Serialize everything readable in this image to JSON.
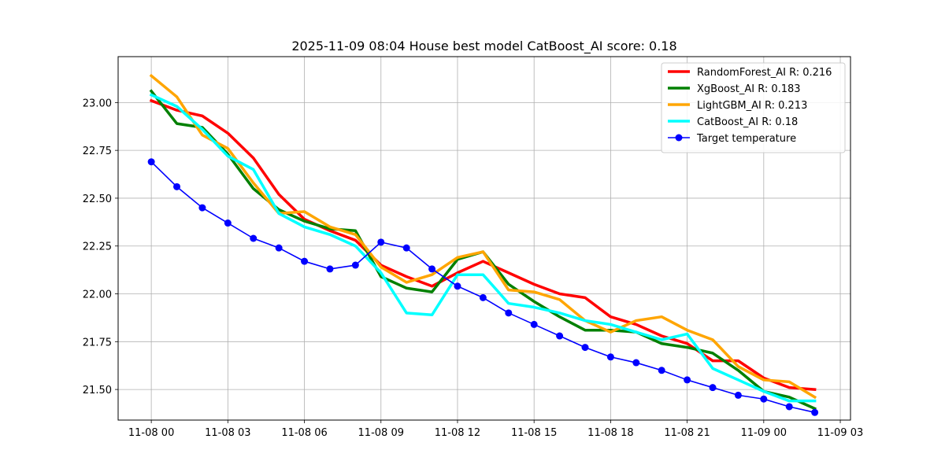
{
  "chart_data": {
    "type": "line",
    "title": "2025-11-09 08:04 House best model CatBoost_AI score: 0.18",
    "xlabel": "",
    "ylabel": "",
    "x_start": "2025-11-08 00:00",
    "x_step_hours": 1,
    "x_ticks": [
      "11-08 00",
      "11-08 03",
      "11-08 06",
      "11-08 09",
      "11-08 12",
      "11-08 15",
      "11-08 18",
      "11-08 21",
      "11-09 00",
      "11-09 03"
    ],
    "y_ticks": [
      "21.50",
      "21.75",
      "22.00",
      "22.25",
      "22.50",
      "22.75",
      "23.00"
    ],
    "ylim": [
      21.34,
      23.24
    ],
    "xlim_hours": [
      -1.3,
      27.4
    ],
    "grid": true,
    "legend_position": "upper right",
    "series": [
      {
        "name": "RandomForest_AI R: 0.216",
        "color": "#ff0000",
        "marker": false,
        "values": [
          23.01,
          22.96,
          22.93,
          22.84,
          22.71,
          22.52,
          22.39,
          22.33,
          22.28,
          22.15,
          22.09,
          22.04,
          22.11,
          22.17,
          22.11,
          22.05,
          22.0,
          21.98,
          21.88,
          21.84,
          21.78,
          21.74,
          21.65,
          21.65,
          21.56,
          21.51,
          21.5
        ]
      },
      {
        "name": "XgBoost_AI R: 0.183",
        "color": "#008000",
        "marker": false,
        "values": [
          23.06,
          22.89,
          22.87,
          22.73,
          22.55,
          22.44,
          22.38,
          22.34,
          22.33,
          22.09,
          22.03,
          22.01,
          22.18,
          22.22,
          22.05,
          21.96,
          21.88,
          21.81,
          21.81,
          21.8,
          21.74,
          21.72,
          21.69,
          21.6,
          21.49,
          21.46,
          21.4
        ]
      },
      {
        "name": "LightGBM_AI R: 0.213",
        "color": "#ffa500",
        "marker": false,
        "values": [
          23.14,
          23.03,
          22.83,
          22.76,
          22.58,
          22.42,
          22.43,
          22.35,
          22.31,
          22.14,
          22.06,
          22.1,
          22.19,
          22.22,
          22.02,
          22.01,
          21.97,
          21.86,
          21.8,
          21.86,
          21.88,
          21.81,
          21.76,
          21.62,
          21.55,
          21.54,
          21.46
        ]
      },
      {
        "name": "CatBoost_AI R: 0.18",
        "color": "#00ffff",
        "marker": false,
        "values": [
          23.04,
          22.98,
          22.86,
          22.72,
          22.65,
          22.42,
          22.35,
          22.31,
          22.25,
          22.11,
          21.9,
          21.89,
          22.1,
          22.1,
          21.95,
          21.93,
          21.9,
          21.86,
          21.84,
          21.8,
          21.76,
          21.79,
          21.61,
          21.55,
          21.49,
          21.44,
          21.44
        ]
      },
      {
        "name": "Target temperature",
        "color": "#0000ff",
        "marker": true,
        "values": [
          22.69,
          22.56,
          22.45,
          22.37,
          22.29,
          22.24,
          22.17,
          22.13,
          22.15,
          22.27,
          22.24,
          22.13,
          22.04,
          21.98,
          21.9,
          21.84,
          21.78,
          21.72,
          21.67,
          21.64,
          21.6,
          21.55,
          21.51,
          21.47,
          21.45,
          21.41,
          21.38
        ]
      }
    ]
  }
}
